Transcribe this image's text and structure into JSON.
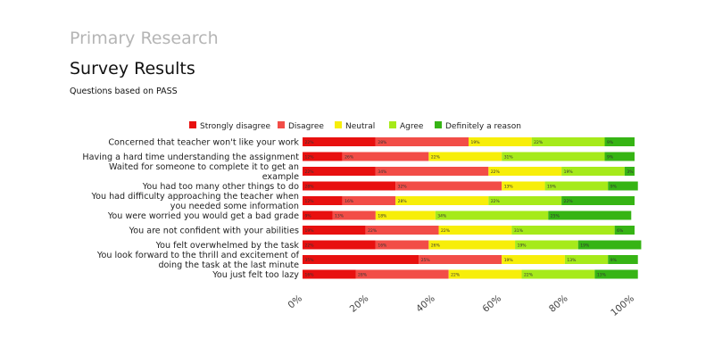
{
  "slide": {
    "heading": "Primary Research",
    "title": "Survey Results",
    "subtitle": "Questions based on PASS"
  },
  "colors": {
    "Strongly disagree": "#e8100f",
    "Disagree": "#f24d47",
    "Neutral": "#f7ee0a",
    "Agree": "#a6ea1a",
    "Definitely a reason": "#36b414"
  },
  "chart_data": {
    "type": "bar",
    "orientation": "horizontal",
    "stacked": "percent",
    "legend_position": "top",
    "grid": false,
    "xlim": [
      0,
      100
    ],
    "x_ticks": [
      "0%",
      "20%",
      "40%",
      "60%",
      "80%",
      "100%"
    ],
    "categories": [
      "Concerned that teacher won't like your work",
      "Having a hard time understanding the assignment",
      "Waited for someone to complete it to get an example",
      "You had too many other things to do",
      "You had difficulty approaching the teacher when you needed some information",
      "You were worried you would get a bad grade",
      "You are not confident with your abilities",
      "You felt overwhelmed by the task",
      "You look forward to the thrill and excitement of doing the task at the last minute",
      "You just felt too lazy"
    ],
    "series": [
      {
        "name": "Strongly disagree",
        "values": [
          22,
          12,
          22,
          28,
          12,
          9,
          19,
          22,
          35,
          16
        ]
      },
      {
        "name": "Disagree",
        "values": [
          28,
          26,
          34,
          32,
          16,
          13,
          22,
          16,
          25,
          28
        ]
      },
      {
        "name": "Neutral",
        "values": [
          19,
          22,
          22,
          13,
          28,
          18,
          22,
          26,
          19,
          22
        ]
      },
      {
        "name": "Agree",
        "values": [
          22,
          31,
          19,
          19,
          22,
          34,
          31,
          19,
          13,
          22
        ]
      },
      {
        "name": "Definitely a reason",
        "values": [
          9,
          9,
          3,
          9,
          22,
          25,
          6,
          19,
          9,
          13
        ]
      }
    ],
    "data_labels": [
      [
        "22%",
        "28%",
        "19%",
        "22%",
        "9%"
      ],
      [
        "12%",
        "26%",
        "22%",
        "31%",
        "9%"
      ],
      [
        "22%",
        "34%",
        "22%",
        "19%",
        "3%"
      ],
      [
        "28%",
        "32%",
        "13%",
        "19%",
        "9%"
      ],
      [
        "12%",
        "16%",
        "28%",
        "22%",
        "22%"
      ],
      [
        "9%",
        "13%",
        "18%",
        "34%",
        "25%"
      ],
      [
        "19%",
        "22%",
        "22%",
        "31%",
        "6%"
      ],
      [
        "22%",
        "16%",
        "26%",
        "19%",
        "19%"
      ],
      [
        "35%",
        "25%",
        "19%",
        "13%",
        "9%"
      ],
      [
        "16%",
        "28%",
        "22%",
        "22%",
        "13%"
      ]
    ]
  }
}
